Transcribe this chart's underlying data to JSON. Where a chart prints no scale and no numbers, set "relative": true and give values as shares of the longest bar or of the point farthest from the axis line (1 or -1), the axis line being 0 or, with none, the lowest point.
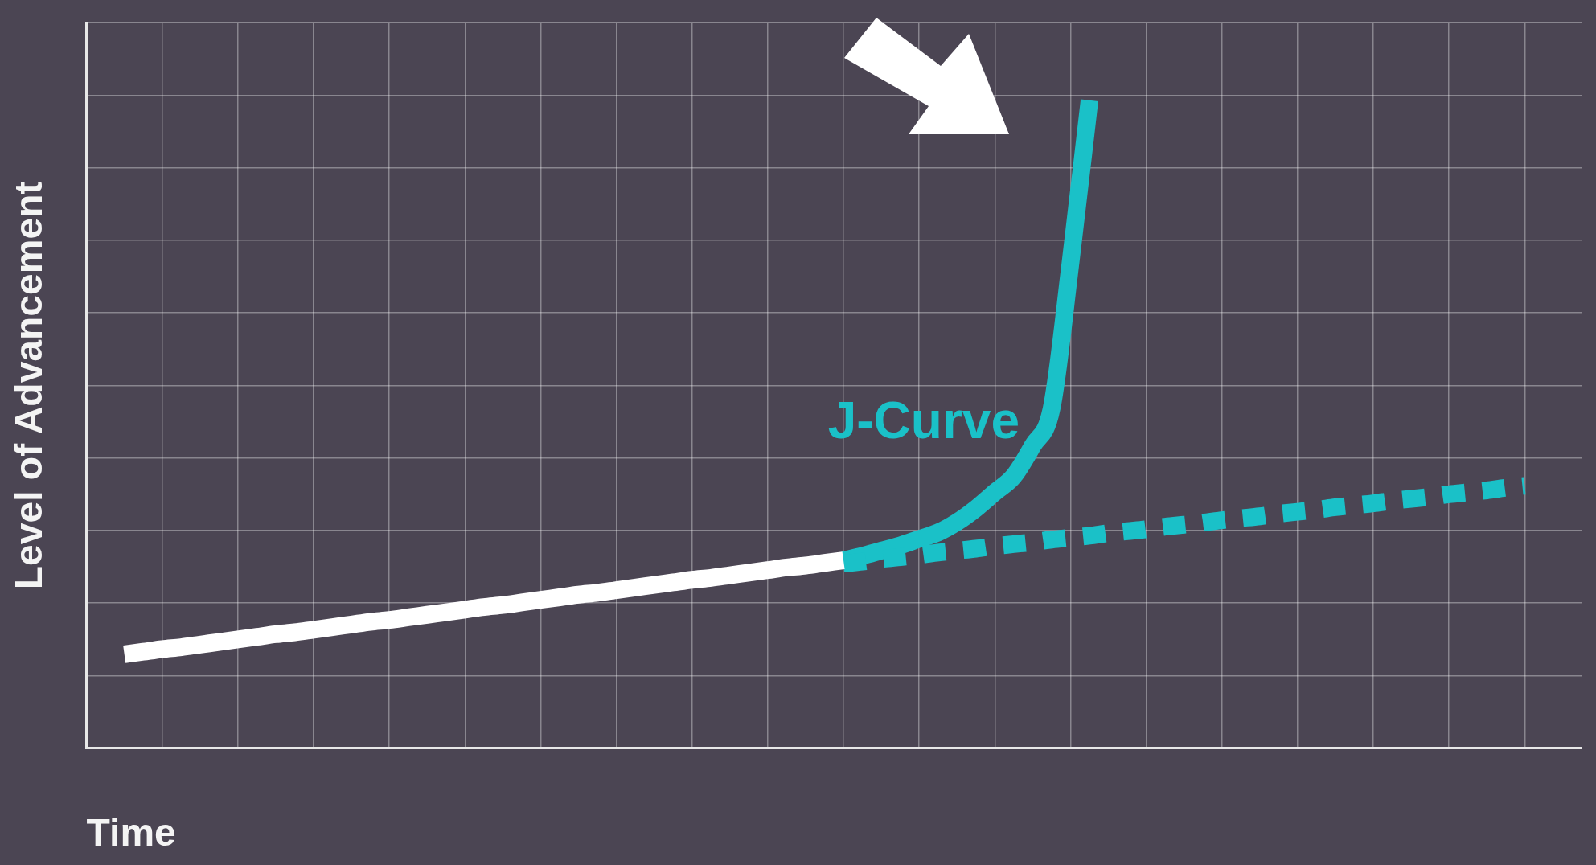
{
  "chart_data": {
    "type": "line",
    "relative": true,
    "xlabel": "Time",
    "ylabel": "Level of Advancement",
    "grid": true,
    "categories": [
      null,
      null,
      null,
      null,
      null,
      null,
      null,
      null,
      null,
      null,
      null,
      null,
      null,
      null,
      null,
      null,
      null,
      null,
      null,
      null,
      null,
      null,
      null,
      null,
      null,
      null,
      null,
      null,
      null,
      null,
      null,
      null,
      null,
      null,
      null,
      null,
      null,
      null,
      null,
      null,
      null,
      null,
      null,
      null,
      null,
      null,
      null,
      null,
      null,
      null,
      null,
      null,
      null,
      null,
      null,
      null,
      null,
      null,
      null,
      null,
      null,
      null,
      null,
      null,
      null,
      null,
      null,
      null,
      null,
      null,
      null,
      null,
      null,
      null,
      null,
      null,
      null,
      null,
      null,
      null
    ],
    "series": [
      {
        "color": "#ffffff",
        "line_style": "solid",
        "values": [
          null,
          null,
          0.145,
          0.149,
          0.153,
          0.156,
          0.16,
          0.164,
          0.168,
          0.172,
          0.176,
          0.179,
          0.183,
          0.187,
          0.191,
          0.195,
          0.198,
          0.202,
          0.206,
          0.21,
          0.214,
          0.218,
          0.221,
          0.225,
          0.229,
          0.233,
          0.237,
          0.24,
          0.244,
          0.248,
          0.252,
          0.256,
          0.26,
          0.263,
          0.267,
          0.271,
          0.275,
          0.279,
          0.282,
          0.286,
          0.29,
          null,
          null,
          null,
          null,
          null,
          null,
          null,
          null,
          null,
          null,
          null,
          null,
          null,
          null,
          null,
          null,
          null,
          null,
          null,
          null,
          null,
          null,
          null,
          null,
          null,
          null,
          null,
          null,
          null,
          null,
          null,
          null,
          null,
          null,
          null,
          null,
          null,
          null,
          null
        ]
      },
      {
        "color": "#1ac1c8",
        "line_style": "dashed",
        "values": [
          null,
          null,
          null,
          null,
          null,
          null,
          null,
          null,
          null,
          null,
          null,
          null,
          null,
          null,
          null,
          null,
          null,
          null,
          null,
          null,
          null,
          null,
          null,
          null,
          null,
          null,
          null,
          null,
          null,
          null,
          null,
          null,
          null,
          null,
          null,
          null,
          null,
          null,
          null,
          null,
          0.285,
          0.288,
          0.292,
          0.295,
          0.298,
          0.302,
          0.305,
          0.308,
          0.312,
          0.315,
          0.318,
          0.322,
          0.325,
          0.328,
          0.332,
          0.335,
          0.338,
          0.342,
          0.345,
          0.348,
          0.352,
          0.355,
          0.358,
          0.362,
          0.365,
          0.368,
          0.372,
          0.375,
          0.378,
          0.382,
          0.385,
          0.388,
          0.392,
          0.395,
          0.398,
          0.402,
          0.405,
          null,
          null,
          null
        ]
      },
      {
        "name": "J-Curve",
        "color": "#1ac1c8",
        "line_style": "solid",
        "values": [
          null,
          null,
          null,
          null,
          null,
          null,
          null,
          null,
          null,
          null,
          null,
          null,
          null,
          null,
          null,
          null,
          null,
          null,
          null,
          null,
          null,
          null,
          null,
          null,
          null,
          null,
          null,
          null,
          null,
          null,
          null,
          null,
          null,
          null,
          null,
          null,
          null,
          null,
          null,
          null,
          0.29,
          0.297,
          0.305,
          0.313,
          0.323,
          0.333,
          0.349,
          0.37,
          0.395,
          0.42,
          0.467,
          0.525,
          0.75,
          1.0,
          null,
          null,
          null,
          null,
          null,
          null,
          null,
          null,
          null,
          null,
          null,
          null,
          null,
          null,
          null,
          null,
          null,
          null,
          null,
          null,
          null,
          null,
          null,
          null,
          null,
          null
        ]
      }
    ]
  }
}
